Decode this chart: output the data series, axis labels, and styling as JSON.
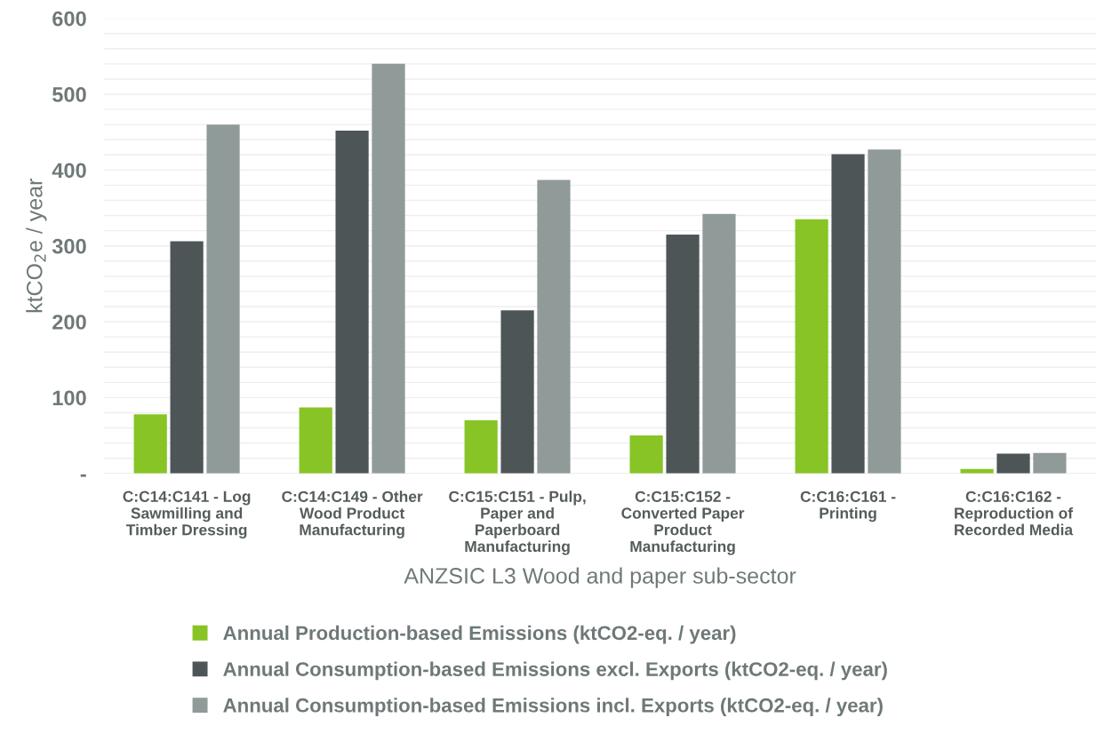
{
  "chart_data": {
    "type": "bar",
    "xlabel": "ANZSIC L3 Wood and paper sub-sector",
    "ylabel": "ktCO$_{2}$e / year",
    "categories": [
      "C:C14:C141 - Log\nSawmilling and\nTimber Dressing",
      "C:C14:C149 - Other\nWood Product\nManufacturing",
      "C:C15:C151 - Pulp,\nPaper and\nPaperboard\nManufacturing",
      "C:C15:C152 -\nConverted Paper\nProduct\nManufacturing",
      "C:C16:C161 -\nPrinting",
      "C:C16:C162 -\nReproduction of\nRecorded Media"
    ],
    "series": [
      {
        "name": "Annual Production-based Emissions (ktCO2-eq. / year)",
        "color": "#88c425",
        "values": [
          78,
          87,
          70,
          50,
          335,
          6
        ]
      },
      {
        "name": "Annual Consumption-based Emissions excl. Exports (ktCO2-eq. / year)",
        "color": "#4d5557",
        "values": [
          306,
          452,
          215,
          315,
          421,
          26
        ]
      },
      {
        "name": "Annual Consumption-based Emissions incl. Exports (ktCO2-eq. / year)",
        "color": "#8f9a99",
        "values": [
          460,
          540,
          387,
          342,
          427,
          27
        ]
      }
    ],
    "ylim": [
      0,
      600
    ],
    "yticks": [
      {
        "value": 0,
        "label": "-"
      },
      {
        "value": 20,
        "label": null
      },
      {
        "value": 40,
        "label": null
      },
      {
        "value": 60,
        "label": null
      },
      {
        "value": 80,
        "label": null
      },
      100,
      {
        "value": 120,
        "label": null
      },
      {
        "value": 140,
        "label": null
      },
      {
        "value": 160,
        "label": null
      },
      {
        "value": 180,
        "label": null
      },
      200,
      {
        "value": 220,
        "label": null
      },
      {
        "value": 240,
        "label": null
      },
      {
        "value": 260,
        "label": null
      },
      {
        "value": 280,
        "label": null
      },
      300,
      {
        "value": 320,
        "label": null
      },
      {
        "value": 340,
        "label": null
      },
      {
        "value": 360,
        "label": null
      },
      {
        "value": 380,
        "label": null
      },
      400,
      {
        "value": 420,
        "label": null
      },
      {
        "value": 440,
        "label": null
      },
      {
        "value": 460,
        "label": null
      },
      {
        "value": 480,
        "label": null
      },
      500,
      {
        "value": 520,
        "label": null
      },
      {
        "value": 540,
        "label": null
      },
      {
        "value": 560,
        "label": null
      },
      {
        "value": 580,
        "label": null
      },
      600
    ],
    "grid": "y",
    "legend": "bottom"
  }
}
